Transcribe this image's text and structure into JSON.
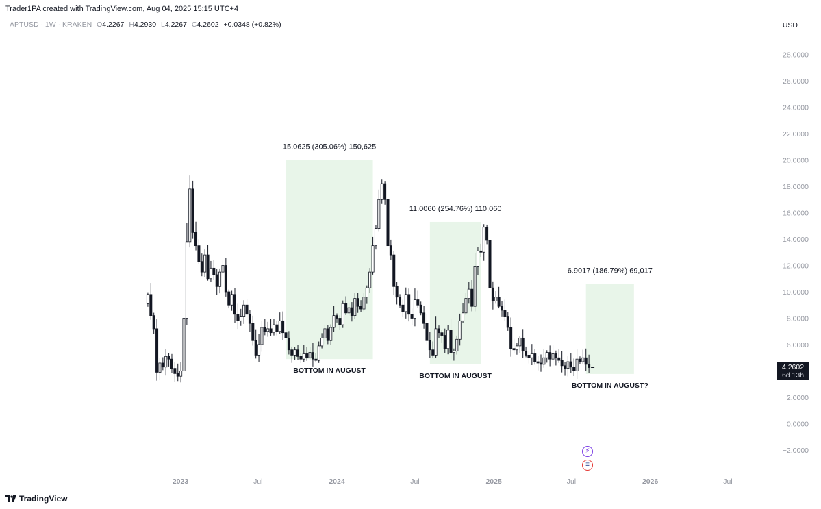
{
  "header": {
    "credit": "Trader1PA created with TradingView.com, Aug 04, 2025 15:15 UTC+4",
    "symbol_line": "APTUSD · 1W · KRAKEN",
    "ohlc": {
      "o_label": "O",
      "o": "4.2267",
      "h_label": "H",
      "h": "4.2930",
      "l_label": "L",
      "l": "4.2267",
      "c_label": "C",
      "c": "4.2602",
      "change": "+0.0348 (+0.82%)"
    },
    "currency": "USD"
  },
  "price_tag": {
    "value": "4.2602",
    "countdown": "6d 13h"
  },
  "footer": {
    "brand": "TradingView"
  },
  "colors": {
    "up": "#ffffff",
    "down": "#131722",
    "zone": "#e8f5e9",
    "axis_text": "#9598a1"
  },
  "icons": [
    "lightning-event-icon",
    "us-flag-event-icon",
    "tradingview-logo-icon"
  ],
  "chart_data": {
    "type": "candlestick",
    "ylim": [
      -2,
      28
    ],
    "y_ticks": [
      "28.0000",
      "26.0000",
      "24.0000",
      "22.0000",
      "20.0000",
      "18.0000",
      "16.0000",
      "14.0000",
      "12.0000",
      "10.0000",
      "8.0000",
      "6.0000",
      "4.0000",
      "2.0000",
      "0.0000",
      "−2.0000"
    ],
    "y_tick_values": [
      28,
      26,
      24,
      22,
      20,
      18,
      16,
      14,
      12,
      10,
      8,
      6,
      4,
      2,
      0,
      -2
    ],
    "x_ticks": [
      {
        "label": "2023",
        "date": "2023-01-01",
        "bold": true
      },
      {
        "label": "Jul",
        "date": "2023-07-01",
        "bold": false
      },
      {
        "label": "2024",
        "date": "2024-01-01",
        "bold": true
      },
      {
        "label": "Jul",
        "date": "2024-07-01",
        "bold": false
      },
      {
        "label": "2025",
        "date": "2025-01-01",
        "bold": true
      },
      {
        "label": "Jul",
        "date": "2025-07-01",
        "bold": false
      },
      {
        "label": "2026",
        "date": "2026-01-01",
        "bold": true
      },
      {
        "label": "Jul",
        "date": "2026-07-01",
        "bold": false
      }
    ],
    "candles_start": "2022-10-17",
    "candle_interval": "1W",
    "closes": [
      9.8,
      8.2,
      7.2,
      3.9,
      4.6,
      4.3,
      5.1,
      4.9,
      4.2,
      3.8,
      3.6,
      4.0,
      8.0,
      13.8,
      17.8,
      14.5,
      13.5,
      12.3,
      11.5,
      12.8,
      11.0,
      11.8,
      11.3,
      10.4,
      11.5,
      12.0,
      10.0,
      9.0,
      9.8,
      8.3,
      7.8,
      8.1,
      9.0,
      8.3,
      7.6,
      6.3,
      5.2,
      6.0,
      7.3,
      7.0,
      7.2,
      6.9,
      7.5,
      7.0,
      7.8,
      6.9,
      6.5,
      5.6,
      5.2,
      5.6,
      5.1,
      4.9,
      5.3,
      5.0,
      5.4,
      4.9,
      4.8,
      5.9,
      6.5,
      7.2,
      6.3,
      7.3,
      8.2,
      8.0,
      7.5,
      9.1,
      8.4,
      8.8,
      8.2,
      9.5,
      8.9,
      8.7,
      9.6,
      10.3,
      11.5,
      13.5,
      14.8,
      17.0,
      18.2,
      17.0,
      13.5,
      12.8,
      10.4,
      9.6,
      9.0,
      8.5,
      9.8,
      8.3,
      8.0,
      9.4,
      9.0,
      8.4,
      7.6,
      6.3,
      5.6,
      5.2,
      7.2,
      6.9,
      6.7,
      5.7,
      7.1,
      5.4,
      5.5,
      6.4,
      7.8,
      8.4,
      9.5,
      10.2,
      8.9,
      11.9,
      13.1,
      13.0,
      14.9,
      13.9,
      10.3,
      9.3,
      9.6,
      8.9,
      8.6,
      8.1,
      7.3,
      5.7,
      5.6,
      5.9,
      6.5,
      5.5,
      5.2,
      5.0,
      5.3,
      4.7,
      4.6,
      4.5,
      5.0,
      5.4,
      4.9,
      5.3,
      5.0,
      4.8,
      4.4,
      4.2,
      4.7,
      4.3,
      4.0,
      4.9,
      4.7,
      5.0,
      4.5,
      4.26
    ],
    "zones": [
      {
        "start": "2023-09-04",
        "end": "2024-03-25",
        "low": 4.9,
        "high": 20.0,
        "label": "15.0625 (305.06%) 150,625",
        "note": "BOTTOM IN AUGUST"
      },
      {
        "start": "2024-08-05",
        "end": "2024-12-02",
        "low": 4.5,
        "high": 15.3,
        "label": "11.0060 (254.76%) 110,060",
        "note": "BOTTOM IN AUGUST"
      },
      {
        "start": "2025-08-04",
        "end": "2025-11-24",
        "low": 3.77,
        "high": 10.6,
        "label": "6.9017 (186.79%) 69,017",
        "note": "BOTTOM IN AUGUST?"
      }
    ],
    "last_price": 4.2602
  }
}
